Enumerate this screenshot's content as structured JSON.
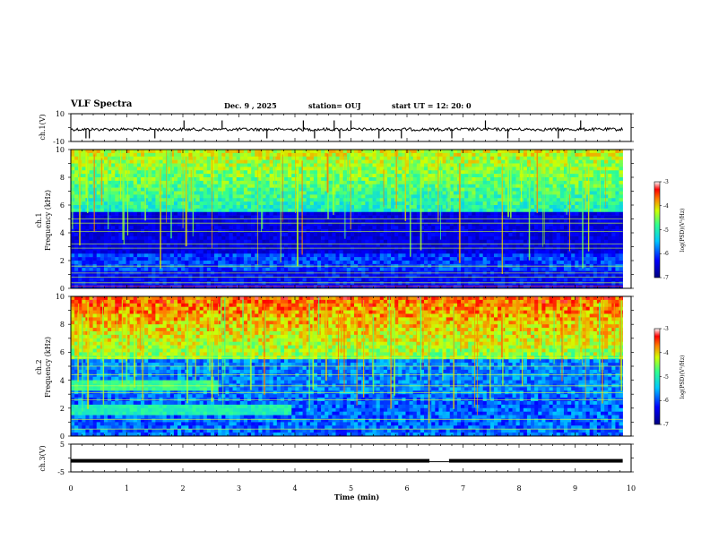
{
  "header": {
    "title": "VLF Spectra",
    "date": "Dec. 9 , 2025",
    "station": "station= OUJ",
    "start": "start  UT =   12: 20: 0"
  },
  "chart_data": [
    {
      "type": "line",
      "name": "ch1-waveform",
      "ylabel": "ch.1(V)",
      "ylim": [
        -10,
        10
      ],
      "yticks": [
        "10",
        "-10"
      ],
      "xlim": [
        0,
        10
      ],
      "spikes_min": [
        0.27,
        0.33,
        1.5,
        2.02,
        2.7,
        3.5,
        4.15,
        4.35,
        4.7,
        4.8,
        5.0,
        5.5,
        5.9,
        6.8,
        7.4,
        7.8,
        8.7,
        9.1
      ]
    },
    {
      "type": "heatmap",
      "name": "ch1-spectrogram",
      "ylabel": "ch.1\nFrequency (kHz)",
      "ylabel_line1": "ch.1",
      "ylabel_line2": "Frequency (kHz)",
      "ylim": [
        0,
        10
      ],
      "yticks": [
        "0",
        "2",
        "4",
        "6",
        "8",
        "10"
      ],
      "xlim": [
        0,
        10
      ],
      "quiet_band_khz": [
        2.5,
        5.5
      ],
      "colorbar": {
        "label": "log(PSD)(V²/Hz)",
        "min": -7,
        "max": -3,
        "ticks": [
          "-3",
          "-4",
          "-5",
          "-6",
          "-7"
        ]
      }
    },
    {
      "type": "heatmap",
      "name": "ch2-spectrogram",
      "ylabel": "ch.2\nFrequency (kHz)",
      "ylabel_line1": "ch.2",
      "ylabel_line2": "Frequency (kHz)",
      "ylim": [
        0,
        10
      ],
      "yticks": [
        "0",
        "2",
        "4",
        "6",
        "8",
        "10"
      ],
      "xlim": [
        0,
        10
      ],
      "hot_band_khz": [
        5.5,
        10
      ],
      "colorbar": {
        "label": "log(PSD)(V²/Hz)",
        "min": -7,
        "max": -3,
        "ticks": [
          "-3",
          "-4",
          "-5",
          "-6",
          "-7"
        ]
      }
    },
    {
      "type": "line",
      "name": "ch3-level",
      "ylabel": "ch.3(V)",
      "ylim": [
        -5,
        5
      ],
      "yticks": [
        "5",
        "-5"
      ],
      "xlim": [
        0,
        10
      ],
      "level_v": -1,
      "gap_min": [
        6.4,
        6.75
      ],
      "xlabel": "Time  (min)",
      "xticks": [
        "0",
        "1",
        "2",
        "3",
        "4",
        "5",
        "6",
        "7",
        "8",
        "9",
        "10"
      ]
    }
  ]
}
